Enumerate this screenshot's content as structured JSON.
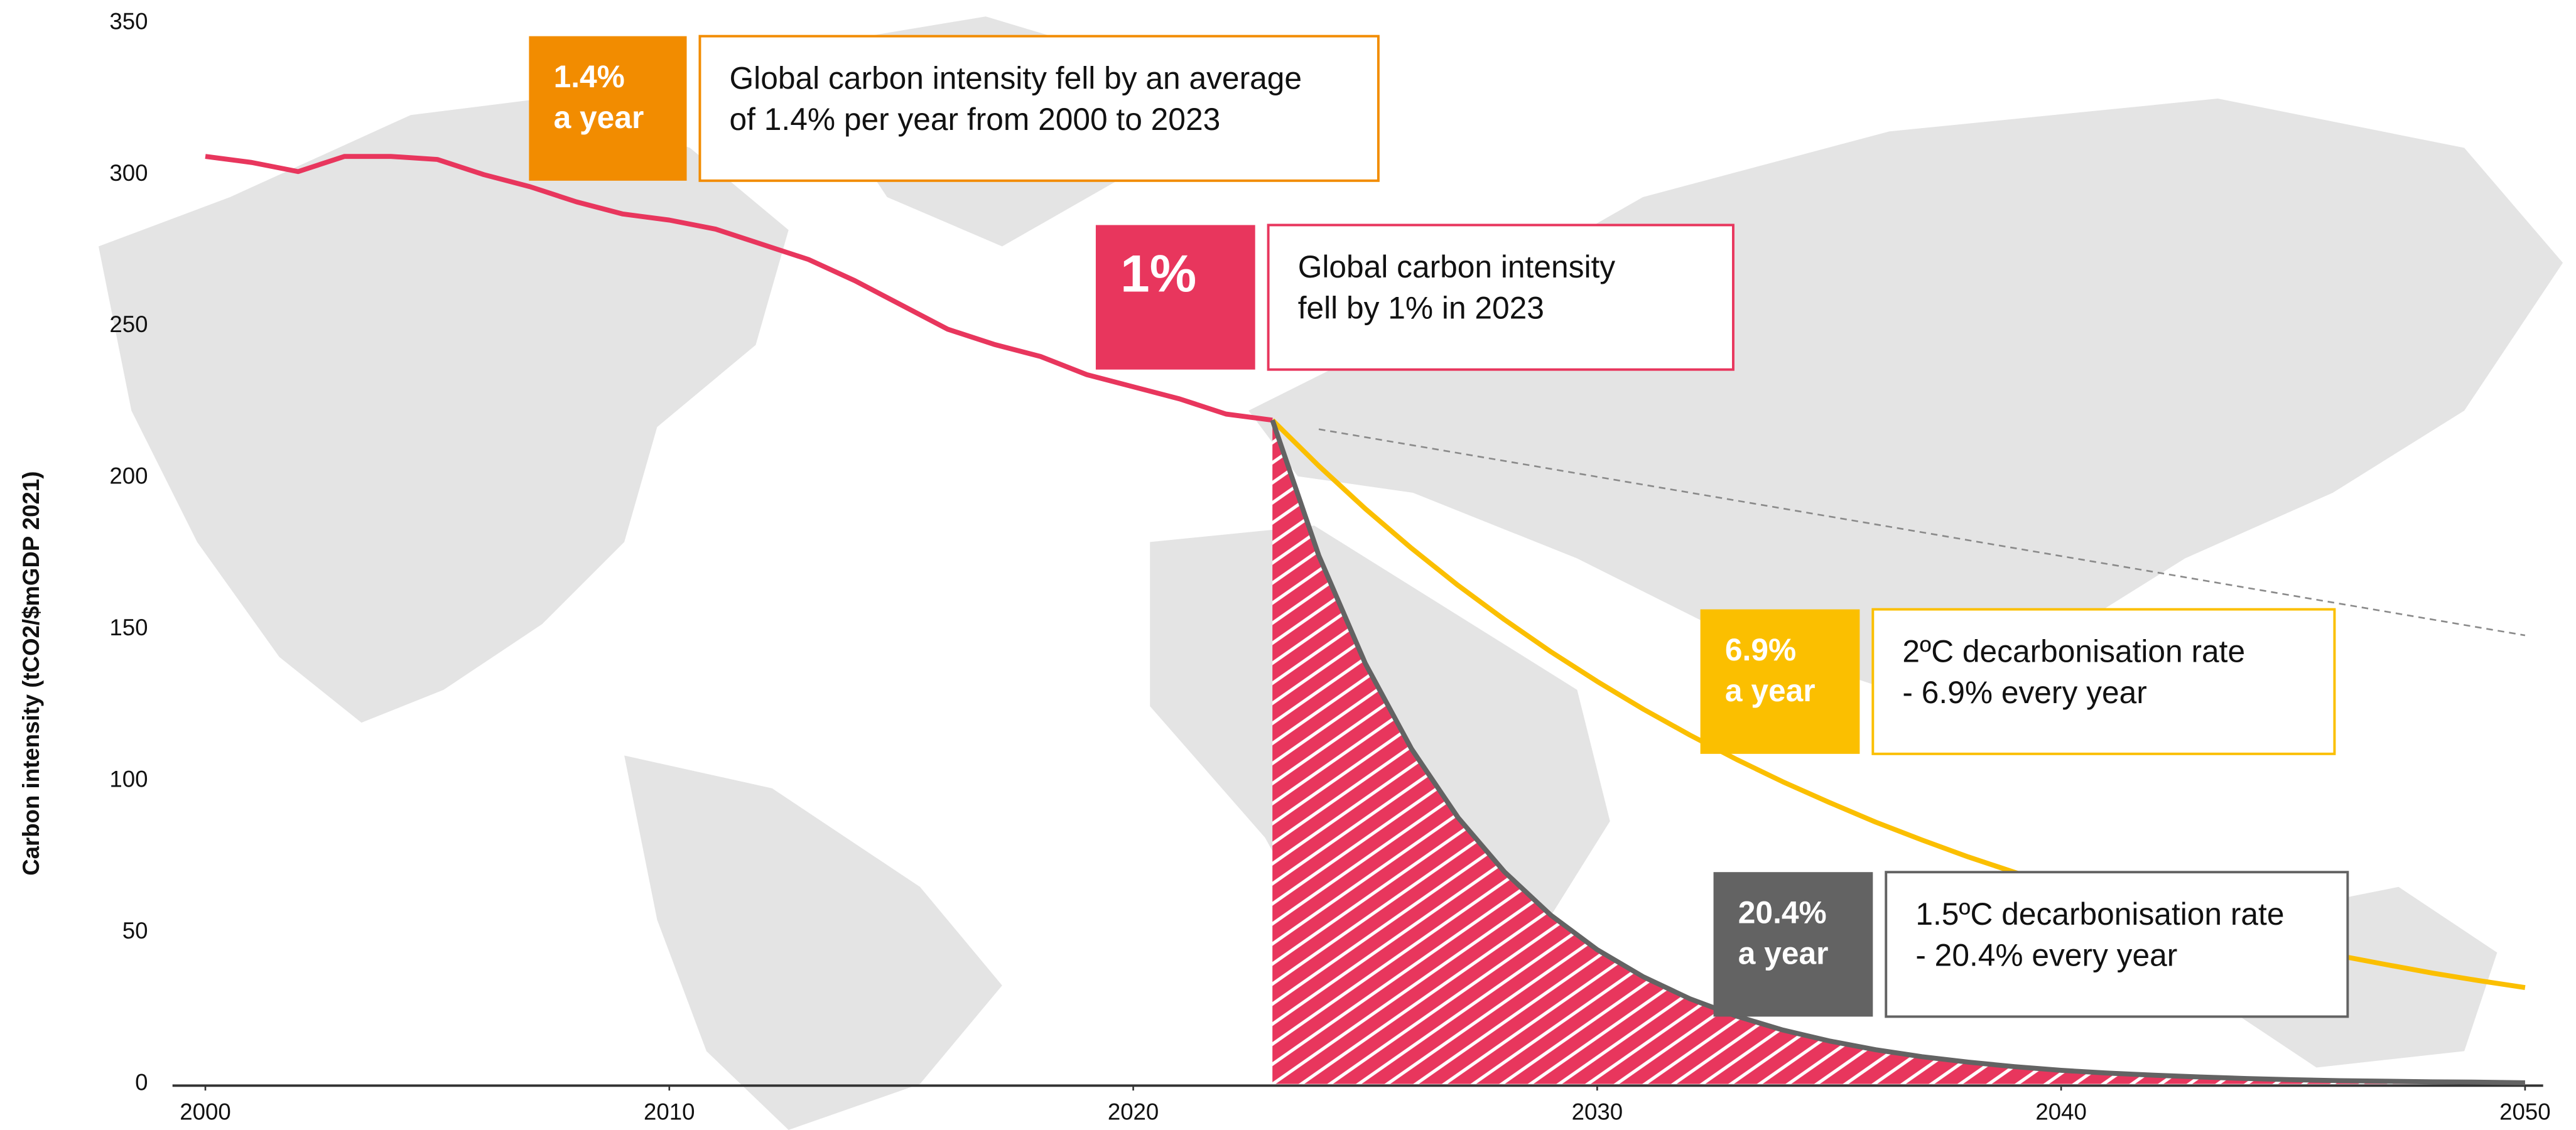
{
  "chart_data": {
    "type": "line",
    "y_label": "Carbon intensity (tCO2/$mGDP 2021)",
    "xlim": [
      2000,
      2050
    ],
    "xticks": [
      2000,
      2010,
      2020,
      2030,
      2040,
      2050
    ],
    "ylim": [
      0,
      350
    ],
    "yticks": [
      0,
      50,
      100,
      150,
      200,
      250,
      300,
      350
    ],
    "grid": false,
    "series": [
      {
        "color": "#e8365d",
        "style": "solid",
        "x": [
          2000,
          2001,
          2002,
          2003,
          2004,
          2005,
          2006,
          2007,
          2008,
          2009,
          2010,
          2011,
          2012,
          2013,
          2014,
          2015,
          2016,
          2017,
          2018,
          2019,
          2020,
          2021,
          2022,
          2023
        ],
        "values": [
          306,
          304,
          301,
          306,
          306,
          305,
          300,
          296,
          291,
          287,
          285,
          282,
          277,
          272,
          265,
          257,
          249,
          244,
          240,
          234,
          230,
          226,
          221,
          219
        ]
      },
      {
        "color": "#fbbf00",
        "style": "solid",
        "x": [
          2023,
          2024,
          2025,
          2026,
          2027,
          2028,
          2029,
          2030,
          2031,
          2032,
          2033,
          2034,
          2035,
          2036,
          2037,
          2038,
          2039,
          2040,
          2041,
          2042,
          2043,
          2044,
          2045,
          2046,
          2047,
          2048,
          2049,
          2050
        ],
        "values": [
          219,
          203.9,
          189.8,
          176.7,
          164.5,
          153.2,
          142.6,
          132.8,
          123.6,
          115.1,
          107.1,
          99.7,
          92.9,
          86.4,
          80.5,
          74.9,
          69.8,
          64.9,
          60.5,
          56.3,
          52.4,
          48.8,
          45.4,
          42.3,
          39.4,
          36.6,
          34.1,
          31.8
        ]
      },
      {
        "color": "#636363",
        "style": "solid",
        "fill": "#e8365d",
        "x": [
          2023,
          2024,
          2025,
          2026,
          2027,
          2028,
          2029,
          2030,
          2031,
          2032,
          2033,
          2034,
          2035,
          2036,
          2037,
          2038,
          2039,
          2040,
          2041,
          2042,
          2043,
          2044,
          2045,
          2046,
          2047,
          2048,
          2049,
          2050
        ],
        "values": [
          219,
          174.3,
          138.8,
          110.5,
          87.9,
          70.0,
          55.7,
          44.3,
          35.3,
          28.1,
          22.4,
          17.8,
          14.2,
          11.3,
          9.0,
          7.2,
          5.7,
          4.5,
          3.6,
          2.9,
          2.3,
          1.8,
          1.4,
          1.1,
          0.9,
          0.7,
          0.6,
          0.4
        ]
      },
      {
        "color": "#8a8a8a",
        "style": "dashed",
        "x": [
          2024,
          2050
        ],
        "values": [
          216,
          148
        ]
      }
    ],
    "annotations": [
      {
        "badge": [
          "1.4%",
          "a year"
        ],
        "color": "#f28c00",
        "lines": [
          "Global carbon intensity fell by an average",
          "of 1.4% per year from 2000 to 2023"
        ]
      },
      {
        "badge": [
          "1%"
        ],
        "color": "#e8365d",
        "lines": [
          "Global carbon intensity",
          "fell by 1% in 2023"
        ]
      },
      {
        "badge": [
          "6.9%",
          "a year"
        ],
        "color": "#fbbf00",
        "lines": [
          "2ºC decarbonisation rate",
          "- 6.9% every year"
        ]
      },
      {
        "badge": [
          "20.4%",
          "a year"
        ],
        "color": "#636363",
        "lines": [
          "1.5ºC decarbonisation rate",
          "- 20.4% every year"
        ]
      }
    ]
  }
}
